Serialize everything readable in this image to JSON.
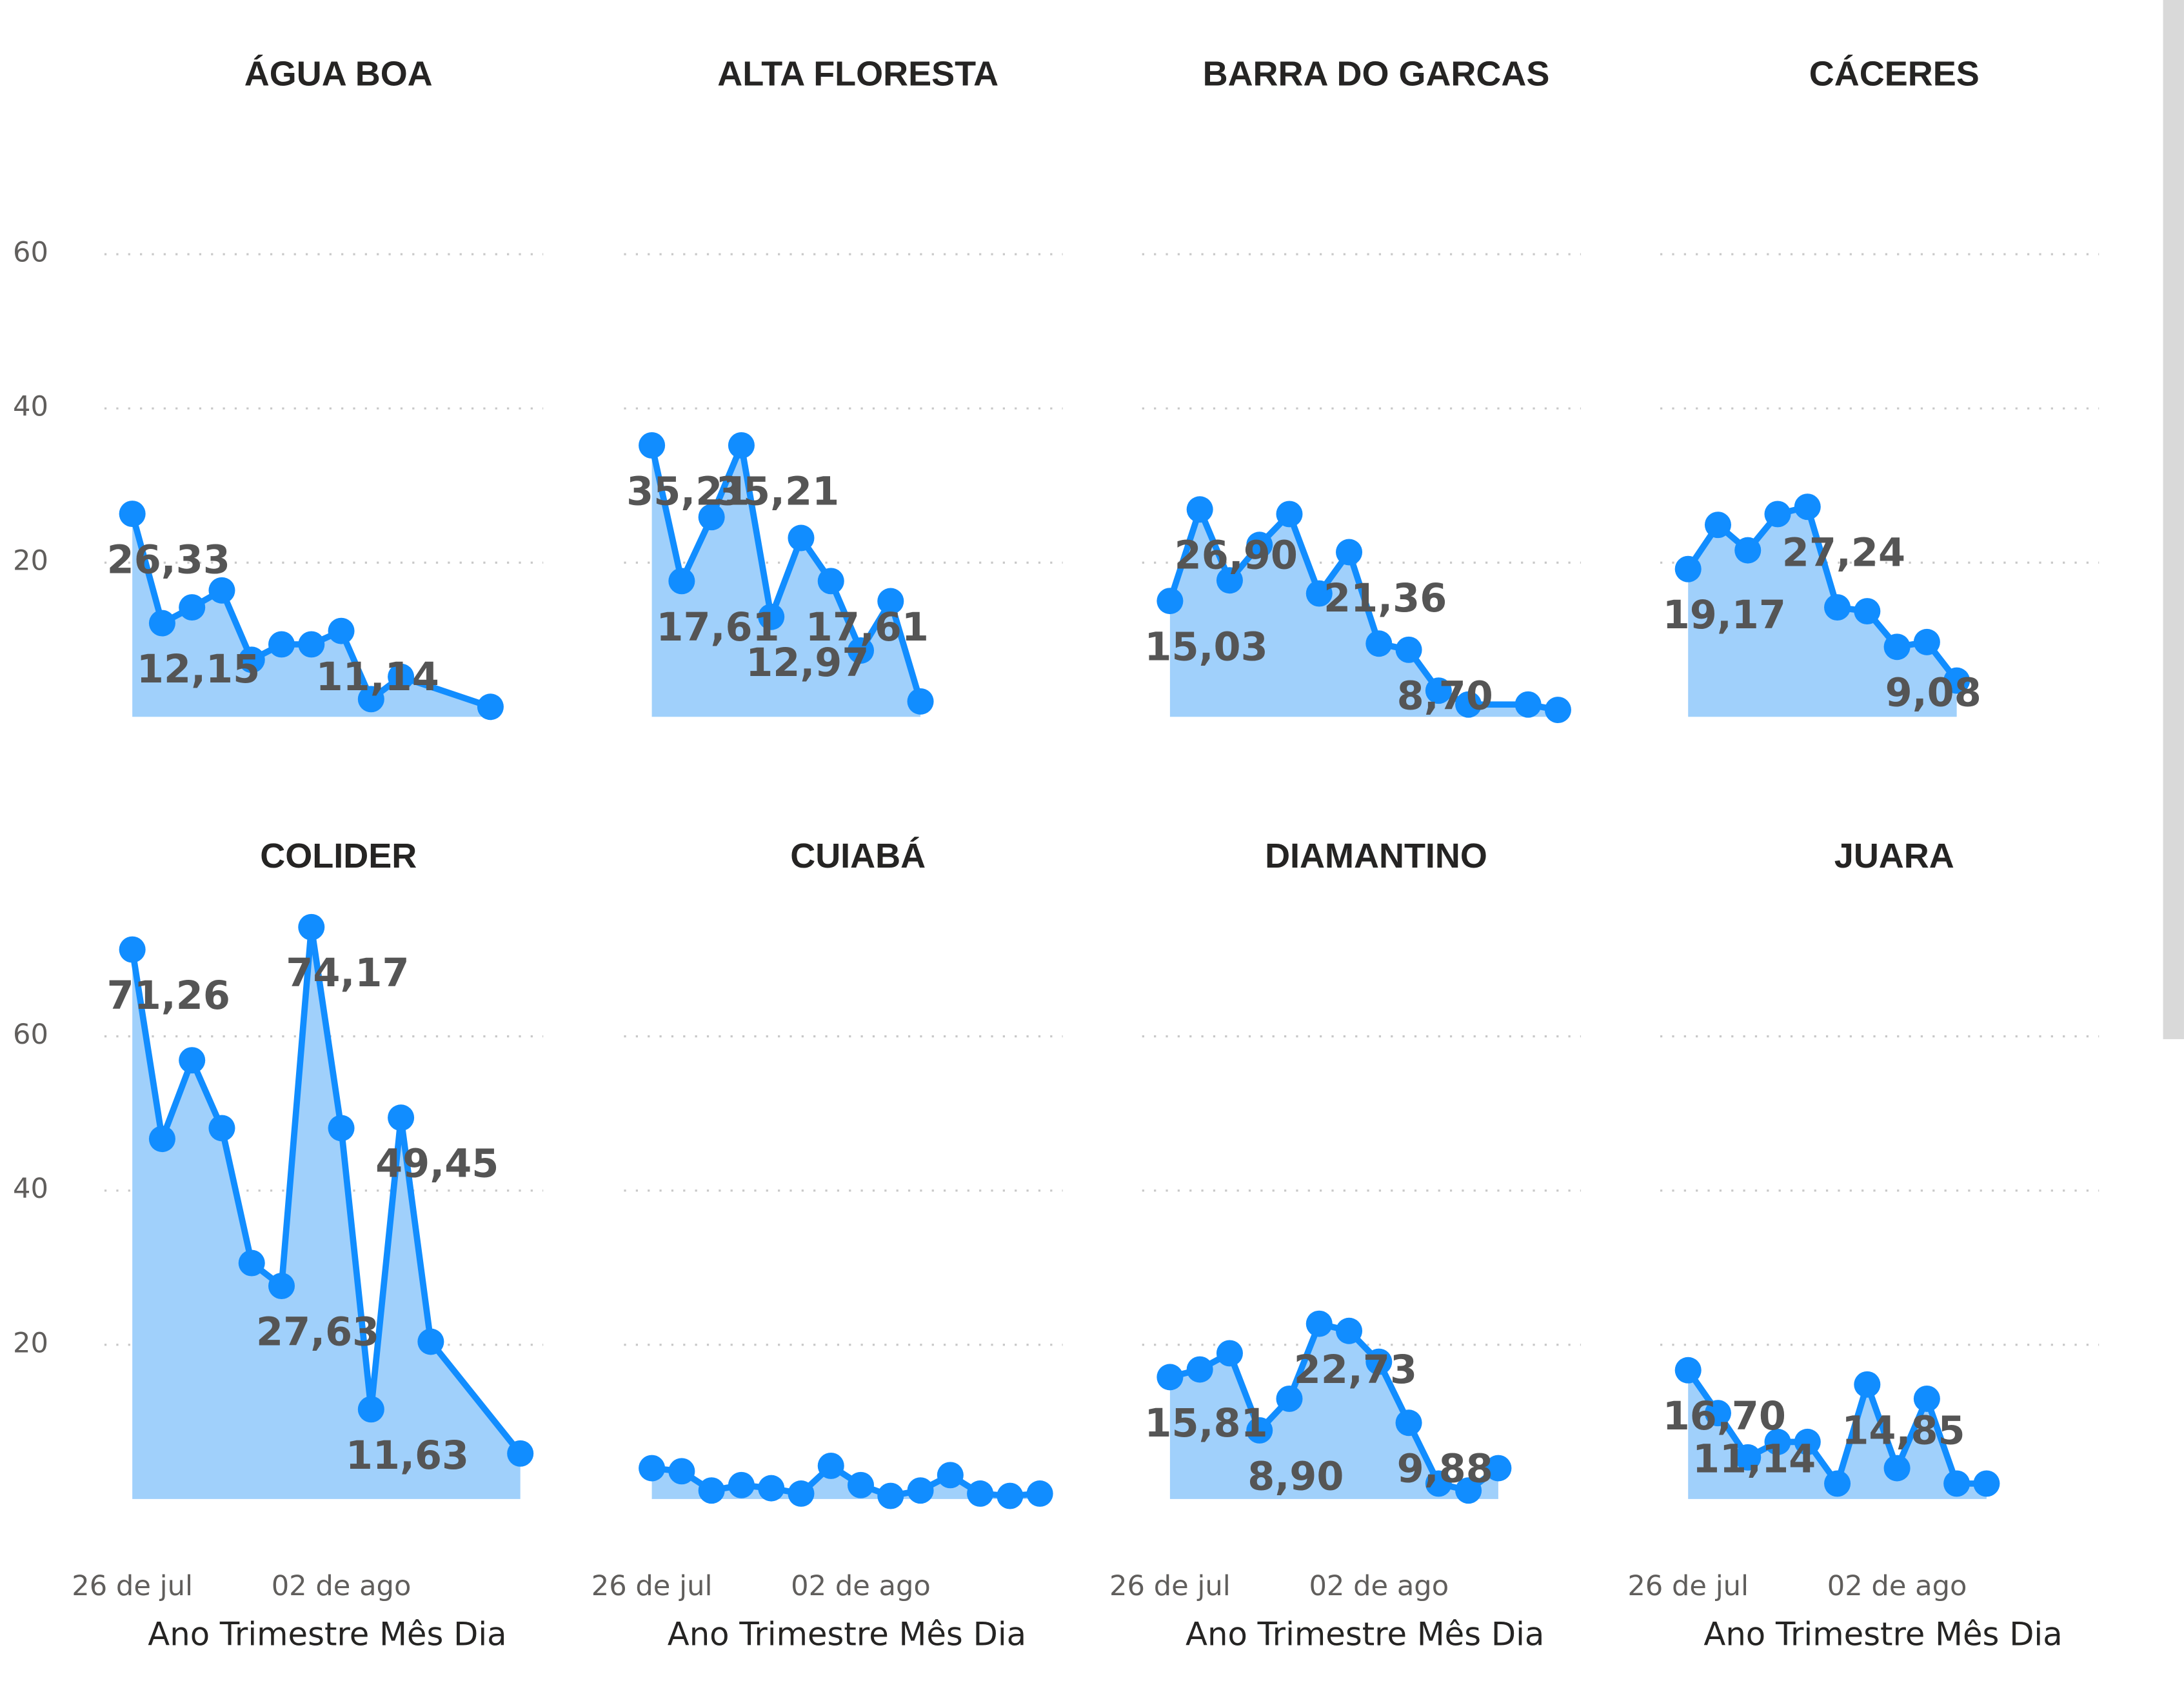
{
  "chart_data": {
    "type": "area",
    "x_label": "Ano Trimestre Mês Dia",
    "categories": [
      "26 de jul",
      null,
      null,
      null,
      null,
      null,
      null,
      "02 de ago",
      null,
      null,
      null,
      null,
      null,
      null
    ],
    "ylim": [
      0,
      80
    ],
    "yticks": [
      20,
      40,
      60
    ],
    "grid": true,
    "color": "#118dff",
    "fill": "#a0d0fb",
    "series": [
      {
        "name": "ÁGUA BOA",
        "values": [
          26.33,
          12.15,
          14.2,
          16.4,
          7.4,
          9.4,
          9.4,
          11.14,
          2.3,
          5.2,
          null,
          null,
          1.3,
          null
        ],
        "value_labels": [
          "26,33",
          "12,15",
          null,
          null,
          null,
          null,
          null,
          "11,14",
          null,
          null,
          null,
          null,
          null,
          null
        ]
      },
      {
        "name": "ALTA FLORESTA",
        "values": [
          35.21,
          17.61,
          25.9,
          35.21,
          12.97,
          23.2,
          17.61,
          8.6,
          15.0,
          2.0,
          null,
          null,
          null,
          null
        ],
        "value_labels": [
          "35,21",
          "17,61",
          null,
          "35,21",
          "12,97",
          null,
          "17,61",
          null,
          null,
          null,
          null,
          null,
          null,
          null
        ]
      },
      {
        "name": "BARRA DO GARCAS",
        "values": [
          15.03,
          26.9,
          17.7,
          22.3,
          26.3,
          16.0,
          21.36,
          9.5,
          8.7,
          3.4,
          1.6,
          null,
          1.6,
          0.9
        ],
        "value_labels": [
          "15,03",
          "26,90",
          null,
          null,
          null,
          null,
          "21,36",
          null,
          "8,70",
          null,
          null,
          null,
          null,
          null
        ]
      },
      {
        "name": "CÁCERES",
        "values": [
          19.17,
          24.9,
          21.6,
          26.3,
          27.24,
          14.2,
          13.7,
          9.08,
          9.7,
          4.7,
          null,
          null,
          null,
          null
        ],
        "value_labels": [
          "19,17",
          null,
          null,
          null,
          "27,24",
          null,
          null,
          "9,08",
          null,
          null,
          null,
          null,
          null,
          null
        ]
      },
      {
        "name": "COLIDER",
        "values": [
          71.26,
          46.7,
          56.9,
          48.1,
          30.6,
          27.63,
          74.17,
          48.1,
          11.63,
          49.45,
          20.4,
          null,
          null,
          5.9
        ],
        "value_labels": [
          "71,26",
          null,
          null,
          null,
          null,
          "27,63",
          "74,17",
          null,
          "11,63",
          "49,45",
          null,
          null,
          null,
          null
        ]
      },
      {
        "name": "CUIABÁ",
        "values": [
          4.0,
          3.6,
          1.1,
          1.8,
          1.4,
          0.7,
          4.3,
          1.8,
          0.4,
          1.1,
          3.1,
          0.7,
          0.4,
          0.7
        ],
        "value_labels": [
          null,
          null,
          null,
          null,
          null,
          null,
          null,
          null,
          null,
          null,
          null,
          null,
          null,
          null
        ]
      },
      {
        "name": "DIAMANTINO",
        "values": [
          15.81,
          16.8,
          18.9,
          8.9,
          13.0,
          22.73,
          21.8,
          17.8,
          9.88,
          2.0,
          1.1,
          4.0,
          null,
          null
        ],
        "value_labels": [
          "15,81",
          null,
          null,
          "8,90",
          null,
          "22,73",
          null,
          null,
          "9,88",
          null,
          null,
          null,
          null,
          null
        ]
      },
      {
        "name": "JUARA",
        "values": [
          16.7,
          11.14,
          5.4,
          7.4,
          7.4,
          2.0,
          14.85,
          4.0,
          13.0,
          2.0,
          2.0,
          null,
          null,
          null
        ],
        "value_labels": [
          "16,70",
          "11,14",
          null,
          null,
          null,
          null,
          "14,85",
          null,
          null,
          null,
          null,
          null,
          null,
          null
        ]
      }
    ]
  }
}
